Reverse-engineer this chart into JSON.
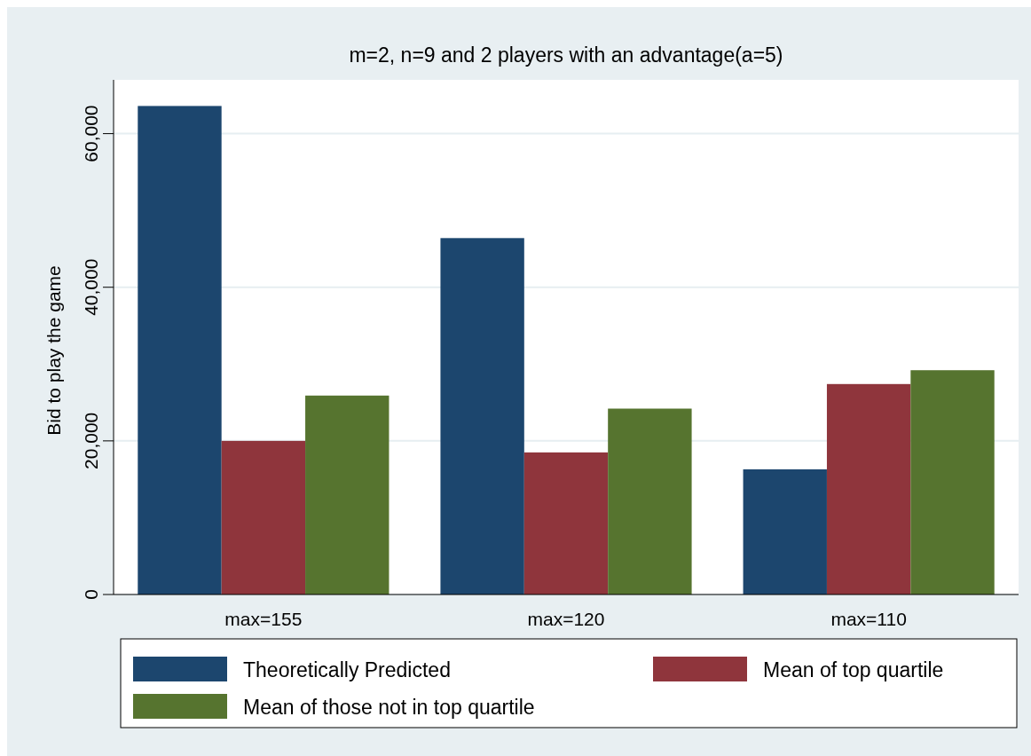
{
  "chart_data": {
    "type": "bar",
    "title": "m=2, n=9 and 2 players with an advantage(a=5)",
    "ylabel": "Bid to play the game",
    "categories": [
      "max=155",
      "max=120",
      "max=110"
    ],
    "series": [
      {
        "name": "Theoretically Predicted",
        "color": "#1c466e",
        "values": [
          63600,
          46400,
          16300
        ]
      },
      {
        "name": "Mean of top quartile",
        "color": "#8f353c",
        "values": [
          20000,
          18500,
          27400
        ]
      },
      {
        "name": "Mean of those not in top quartile",
        "color": "#56742f",
        "values": [
          25900,
          24200,
          29200
        ]
      }
    ],
    "ylim": [
      0,
      67000
    ],
    "yticks": [
      {
        "value": 0,
        "label": "0"
      },
      {
        "value": 20000,
        "label": "20,000"
      },
      {
        "value": 40000,
        "label": "40,000"
      },
      {
        "value": 60000,
        "label": "60,000"
      }
    ],
    "grid": "y",
    "legend": "bottom"
  }
}
